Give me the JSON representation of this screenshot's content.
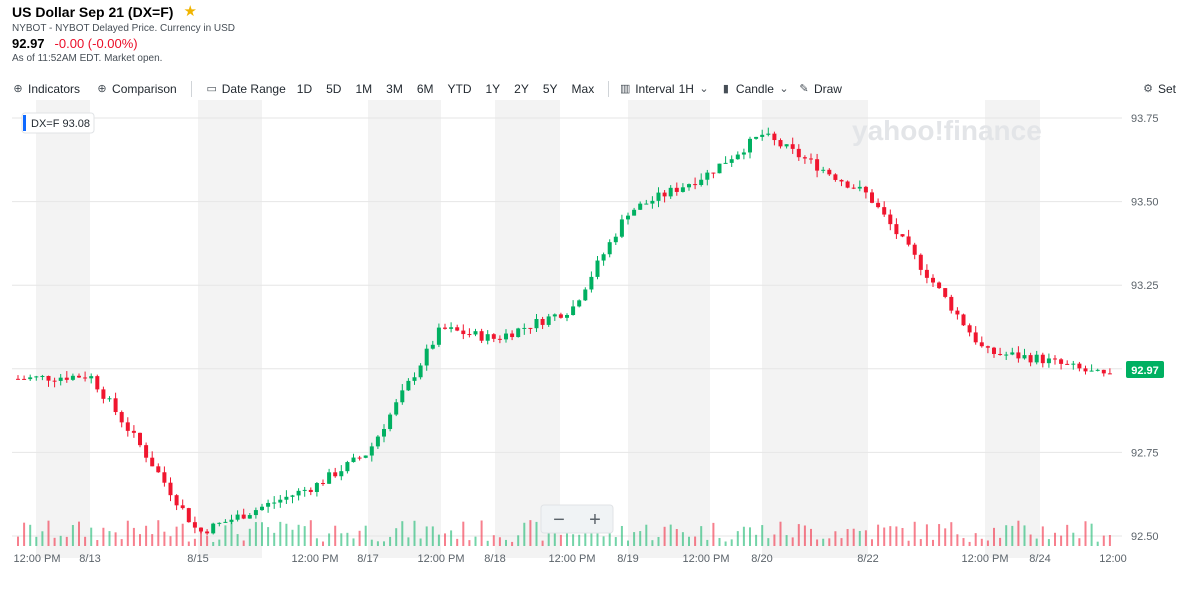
{
  "header": {
    "title": "US Dollar Sep 21 (DX=F)",
    "subtitle": "NYBOT - NYBOT Delayed Price. Currency in USD",
    "price": "92.97",
    "change": "-0.00 (-0.00%)",
    "as_of": "As of 11:52AM EDT. Market open."
  },
  "toolbar": {
    "indicators": "Indicators",
    "comparison": "Comparison",
    "date_range": "Date Range",
    "ranges": [
      "1D",
      "5D",
      "1M",
      "3M",
      "6M",
      "YTD",
      "1Y",
      "2Y",
      "5Y",
      "Max"
    ],
    "interval_label": "Interval",
    "interval_value": "1H",
    "candle": "Candle",
    "draw": "Draw",
    "settings": "Set"
  },
  "chart": {
    "legend": "DX=F  93.08",
    "watermark": "yahoo!finance",
    "last_price_label": "92.97",
    "colors": {
      "up": "#00b061",
      "down": "#f0162f",
      "shade": "#f3f3f3",
      "grid": "#e6e6e6",
      "badge": "#00b061"
    }
  },
  "chart_data": {
    "type": "candlestick",
    "y_ticks": [
      "93.75",
      "93.50",
      "93.25",
      "93.00",
      "92.75",
      "92.50"
    ],
    "ylim": [
      92.47,
      93.78
    ],
    "x_tick_labels": [
      "12:00 PM",
      "8/13",
      "8/15",
      "12:00 PM",
      "8/17",
      "12:00 PM",
      "8/18",
      "12:00 PM",
      "8/19",
      "12:00 PM",
      "8/20",
      "8/22",
      "12:00 PM",
      "8/24",
      "12:00"
    ],
    "ohlc_anchors": [
      [
        "12:00 PM",
        92.97
      ],
      [
        "8/13",
        92.98
      ],
      [
        "8/13 session",
        92.77
      ],
      [
        "8/15",
        92.51
      ],
      [
        "12:00 PM",
        92.65
      ],
      [
        "8/17",
        92.75
      ],
      [
        "12:00 PM",
        93.12
      ],
      [
        "8/18",
        93.09
      ],
      [
        "12:00 PM",
        93.18
      ],
      [
        "8/19",
        93.47
      ],
      [
        "12:00 PM",
        93.58
      ],
      [
        "8/20",
        93.7
      ],
      [
        "8/22",
        93.52
      ],
      [
        "12:00 PM",
        93.05
      ],
      [
        "8/24",
        93.03
      ],
      [
        "12:00",
        92.97
      ]
    ]
  }
}
